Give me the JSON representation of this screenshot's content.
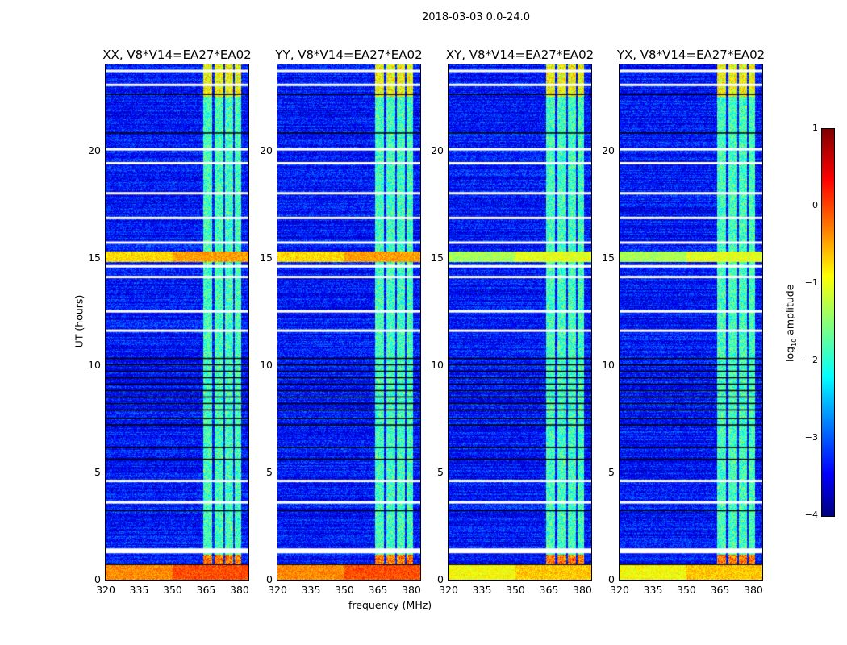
{
  "chart_data": {
    "type": "heatmap",
    "suptitle": "2018-03-03 0.0-24.0",
    "xlabel": "frequency (MHz)",
    "ylabel": "UT (hours)",
    "xlim": [
      320,
      384
    ],
    "ylim": [
      0,
      24
    ],
    "xticks": [
      "320",
      "335",
      "350",
      "365",
      "380"
    ],
    "xtick_values": [
      320,
      335,
      350,
      365,
      380
    ],
    "yticks": [
      "0",
      "5",
      "10",
      "15",
      "20"
    ],
    "ytick_values": [
      0,
      5,
      10,
      15,
      20
    ],
    "panels": [
      {
        "title": "XX, V8*V14=EA27*EA02"
      },
      {
        "title": "YY, V8*V14=EA27*EA02"
      },
      {
        "title": "XY, V8*V14=EA27*EA02"
      },
      {
        "title": "YX, V8*V14=EA27*EA02"
      }
    ],
    "colorbar": {
      "label_main": "log",
      "label_sub": "10",
      "label_rest": " amplitude",
      "colormap": "jet",
      "range": [
        -4,
        1
      ],
      "ticks": [
        "1",
        "0",
        "−1",
        "−2",
        "−3",
        "−4"
      ],
      "tick_values": [
        1,
        0,
        -1,
        -2,
        -3,
        -4
      ]
    },
    "features": {
      "background_log_amp": -3.3,
      "rfi_subbands_mhz": [
        [
          363.5,
          367.5
        ],
        [
          368.5,
          372.5
        ],
        [
          373.5,
          377.0
        ],
        [
          377.5,
          380.5
        ]
      ],
      "rfi_log_amp": -1.8,
      "flagged_white_hours": [
        23.7,
        23.05,
        20.05,
        19.4,
        18.0,
        16.85,
        15.7,
        14.6,
        14.1,
        12.5,
        11.6,
        4.6,
        3.6,
        1.4
      ],
      "black_line_hours": [
        22.6,
        20.8,
        10.3,
        10.0,
        9.7,
        9.4,
        9.1,
        8.8,
        8.5,
        8.2,
        7.9,
        7.5,
        7.2,
        6.15,
        5.6,
        3.2,
        0.7
      ],
      "bright_hour_ranges": [
        [
          0.0,
          0.75,
          0.0
        ],
        [
          14.8,
          15.3,
          -0.4
        ]
      ]
    }
  }
}
